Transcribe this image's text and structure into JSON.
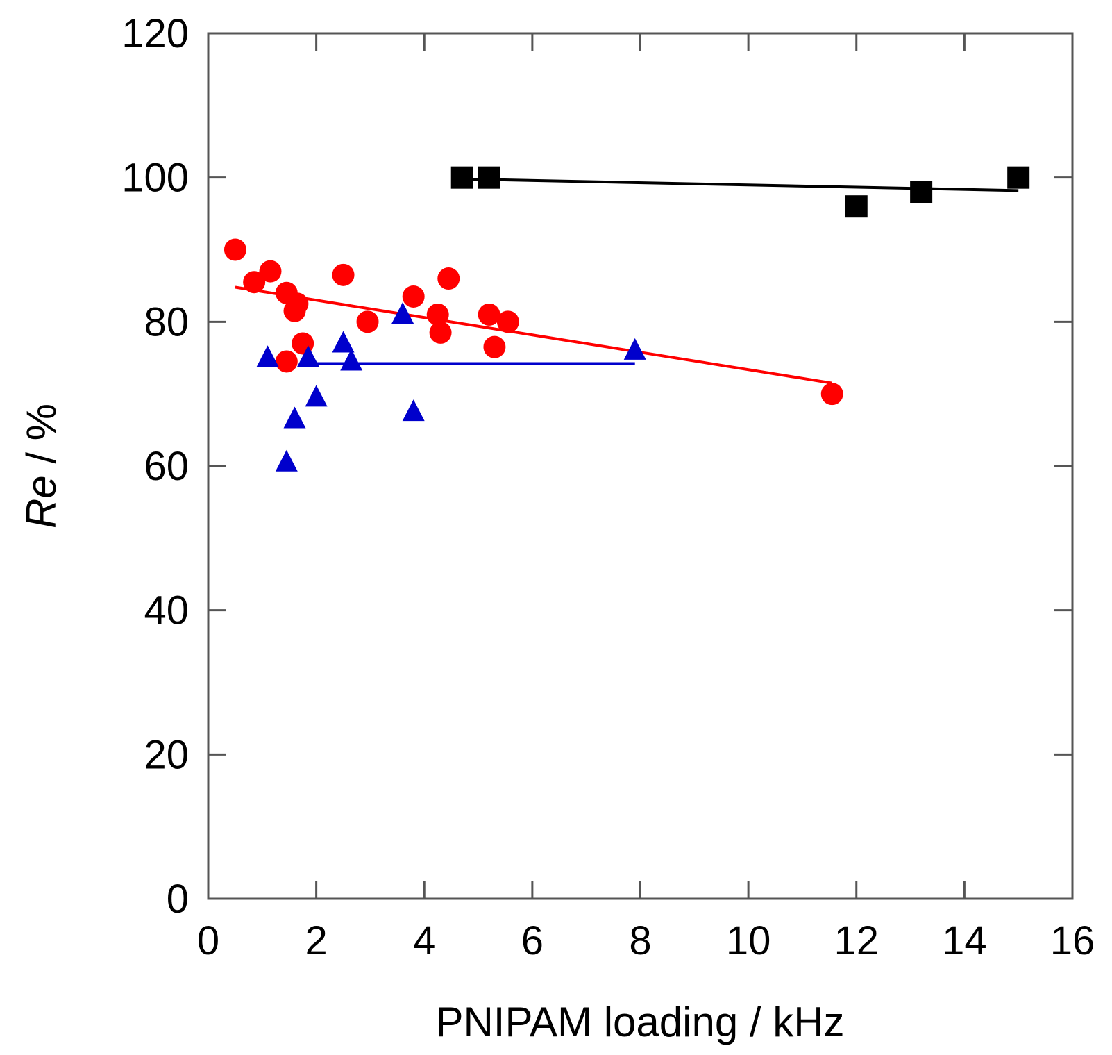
{
  "chart_data": {
    "type": "scatter",
    "title": "",
    "xlabel": "PNIPAM loading / kHz",
    "ylabel_italic": "Re",
    "ylabel_rest": " / %",
    "xlim": [
      0,
      16
    ],
    "ylim": [
      0,
      120
    ],
    "xticks": [
      0,
      2,
      4,
      6,
      8,
      10,
      12,
      14,
      16
    ],
    "yticks": [
      0,
      20,
      40,
      60,
      80,
      100,
      120
    ],
    "grid": false,
    "series": [
      {
        "name": "black squares",
        "marker": "square",
        "color": "#000000",
        "points": [
          [
            4.7,
            100
          ],
          [
            5.2,
            100
          ],
          [
            12.0,
            96
          ],
          [
            13.2,
            98
          ],
          [
            15.0,
            100
          ]
        ],
        "fit": [
          [
            4.7,
            99.8
          ],
          [
            15.0,
            98.2
          ]
        ]
      },
      {
        "name": "red circles",
        "marker": "circle",
        "color": "#ff0000",
        "points": [
          [
            0.5,
            90
          ],
          [
            0.85,
            85.5
          ],
          [
            1.15,
            87
          ],
          [
            1.45,
            84
          ],
          [
            1.6,
            81.5
          ],
          [
            1.65,
            82.5
          ],
          [
            1.75,
            77
          ],
          [
            1.45,
            74.5
          ],
          [
            2.5,
            86.5
          ],
          [
            2.95,
            80
          ],
          [
            3.8,
            83.5
          ],
          [
            4.25,
            81
          ],
          [
            4.3,
            78.5
          ],
          [
            4.45,
            86
          ],
          [
            5.2,
            81
          ],
          [
            5.3,
            76.5
          ],
          [
            5.55,
            80
          ],
          [
            11.55,
            70
          ]
        ],
        "fit": [
          [
            0.5,
            84.8
          ],
          [
            11.55,
            71.5
          ]
        ]
      },
      {
        "name": "blue triangles",
        "marker": "triangle",
        "color": "#0000cc",
        "points": [
          [
            1.1,
            75
          ],
          [
            1.45,
            60.5
          ],
          [
            1.6,
            66.5
          ],
          [
            1.85,
            75
          ],
          [
            2.0,
            69.5
          ],
          [
            2.5,
            77
          ],
          [
            2.65,
            74.5
          ],
          [
            3.6,
            81
          ],
          [
            3.8,
            67.5
          ],
          [
            7.9,
            76
          ]
        ],
        "fit": [
          [
            1.85,
            74.2
          ],
          [
            7.9,
            74.2
          ]
        ]
      }
    ]
  }
}
